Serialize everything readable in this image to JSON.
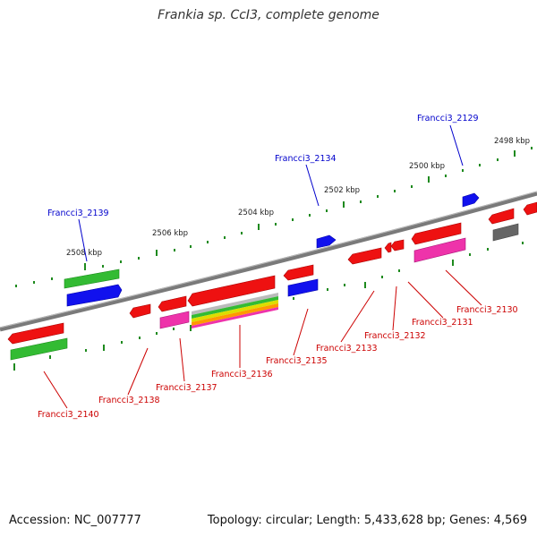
{
  "title": "Frankia sp. CcI3, complete genome",
  "footer": {
    "accession": "Accession: NC_007777",
    "summary": "Topology: circular; Length: 5,433,628 bp; Genes: 4,569"
  },
  "scale_labels": [
    "2498 kbp",
    "2500 kbp",
    "2502 kbp",
    "2504 kbp",
    "2506 kbp",
    "2508 kbp"
  ],
  "gene_labels_above": [
    "Francci3_2129",
    "Francci3_2134",
    "Francci3_2139"
  ],
  "gene_labels_below": [
    "Francci3_2130",
    "Francci3_2131",
    "Francci3_2132",
    "Francci3_2133",
    "Francci3_2135",
    "Francci3_2136",
    "Francci3_2137",
    "Francci3_2138",
    "Francci3_2140"
  ],
  "colors": {
    "backbone": "#7a7a7a",
    "tick": "#1e8a1e",
    "label_above": "#0000cc",
    "label_below": "#cc0000",
    "red": "#ee1111",
    "blue": "#1111ee",
    "green": "#33bb33",
    "pink": "#ee33aa",
    "gray": "#666666"
  }
}
